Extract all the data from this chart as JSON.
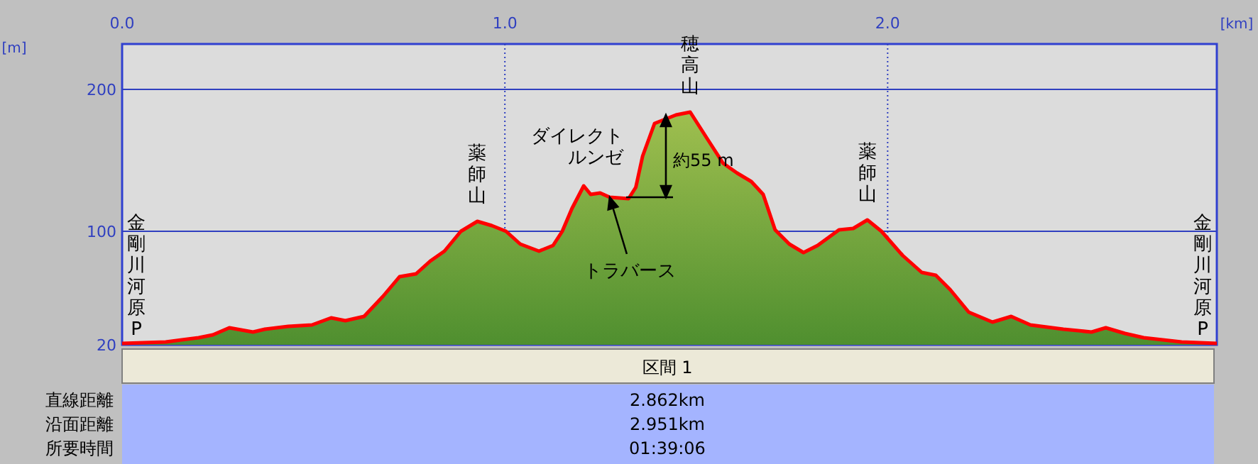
{
  "chart_data": {
    "type": "area",
    "xlabel": "[km]",
    "ylabel": "[m]",
    "xlim": [
      0,
      2.86
    ],
    "ylim": [
      20,
      232
    ],
    "xticks": [
      {
        "value": 0,
        "label": "0.0"
      },
      {
        "value": 1,
        "label": "1.0"
      },
      {
        "value": 2,
        "label": "2.0"
      }
    ],
    "yticks": [
      20,
      100,
      200
    ],
    "grid": true,
    "series": [
      {
        "color": "#ff0000",
        "x": [
          0,
          0.114,
          0.2,
          0.237,
          0.28,
          0.342,
          0.373,
          0.434,
          0.496,
          0.546,
          0.583,
          0.632,
          0.681,
          0.725,
          0.768,
          0.805,
          0.842,
          0.885,
          0.928,
          0.966,
          1.003,
          1.04,
          1.089,
          1.126,
          1.15,
          1.175,
          1.206,
          1.224,
          1.249,
          1.274,
          1.323,
          1.342,
          1.36,
          1.391,
          1.447,
          1.484,
          1.527,
          1.57,
          1.607,
          1.644,
          1.675,
          1.706,
          1.743,
          1.78,
          1.817,
          1.873,
          1.91,
          1.947,
          1.984,
          2.039,
          2.089,
          2.126,
          2.163,
          2.212,
          2.274,
          2.323,
          2.373,
          2.459,
          2.533,
          2.57,
          2.62,
          2.669,
          2.768,
          2.86
        ],
        "values": [
          21,
          22,
          25,
          27,
          32,
          29,
          31,
          33,
          34,
          39,
          37,
          40,
          54,
          68,
          70,
          79,
          86,
          100,
          107,
          104,
          100,
          91,
          86,
          90,
          100,
          116,
          132,
          126,
          127,
          124,
          123,
          131,
          153,
          176,
          182,
          184,
          166,
          148,
          141,
          135,
          126,
          101,
          91,
          85,
          90,
          101,
          102,
          108,
          100,
          83,
          71,
          69,
          59,
          43,
          36,
          40,
          34,
          31,
          29,
          32,
          28,
          25,
          22,
          21
        ]
      }
    ],
    "annotations": [
      {
        "text": "金剛川河原P",
        "x": 0,
        "y": 21
      },
      {
        "text": "薬師山",
        "x": 0.928,
        "y": 107
      },
      {
        "text": "穂高山",
        "x": 1.484,
        "y": 184
      },
      {
        "text": "トラバース",
        "x": 1.274,
        "y": 124
      },
      {
        "text": "薬師山",
        "x": 1.947,
        "y": 108
      },
      {
        "text": "金剛川河原P",
        "x": 2.86,
        "y": 21
      },
      "ダイレクトルンゼ",
      "約55 m",
      "区間 1",
      "直線距離",
      "2.862km",
      "沿面距離",
      "2.951km",
      "所要時間",
      "01:39:06"
    ]
  }
}
